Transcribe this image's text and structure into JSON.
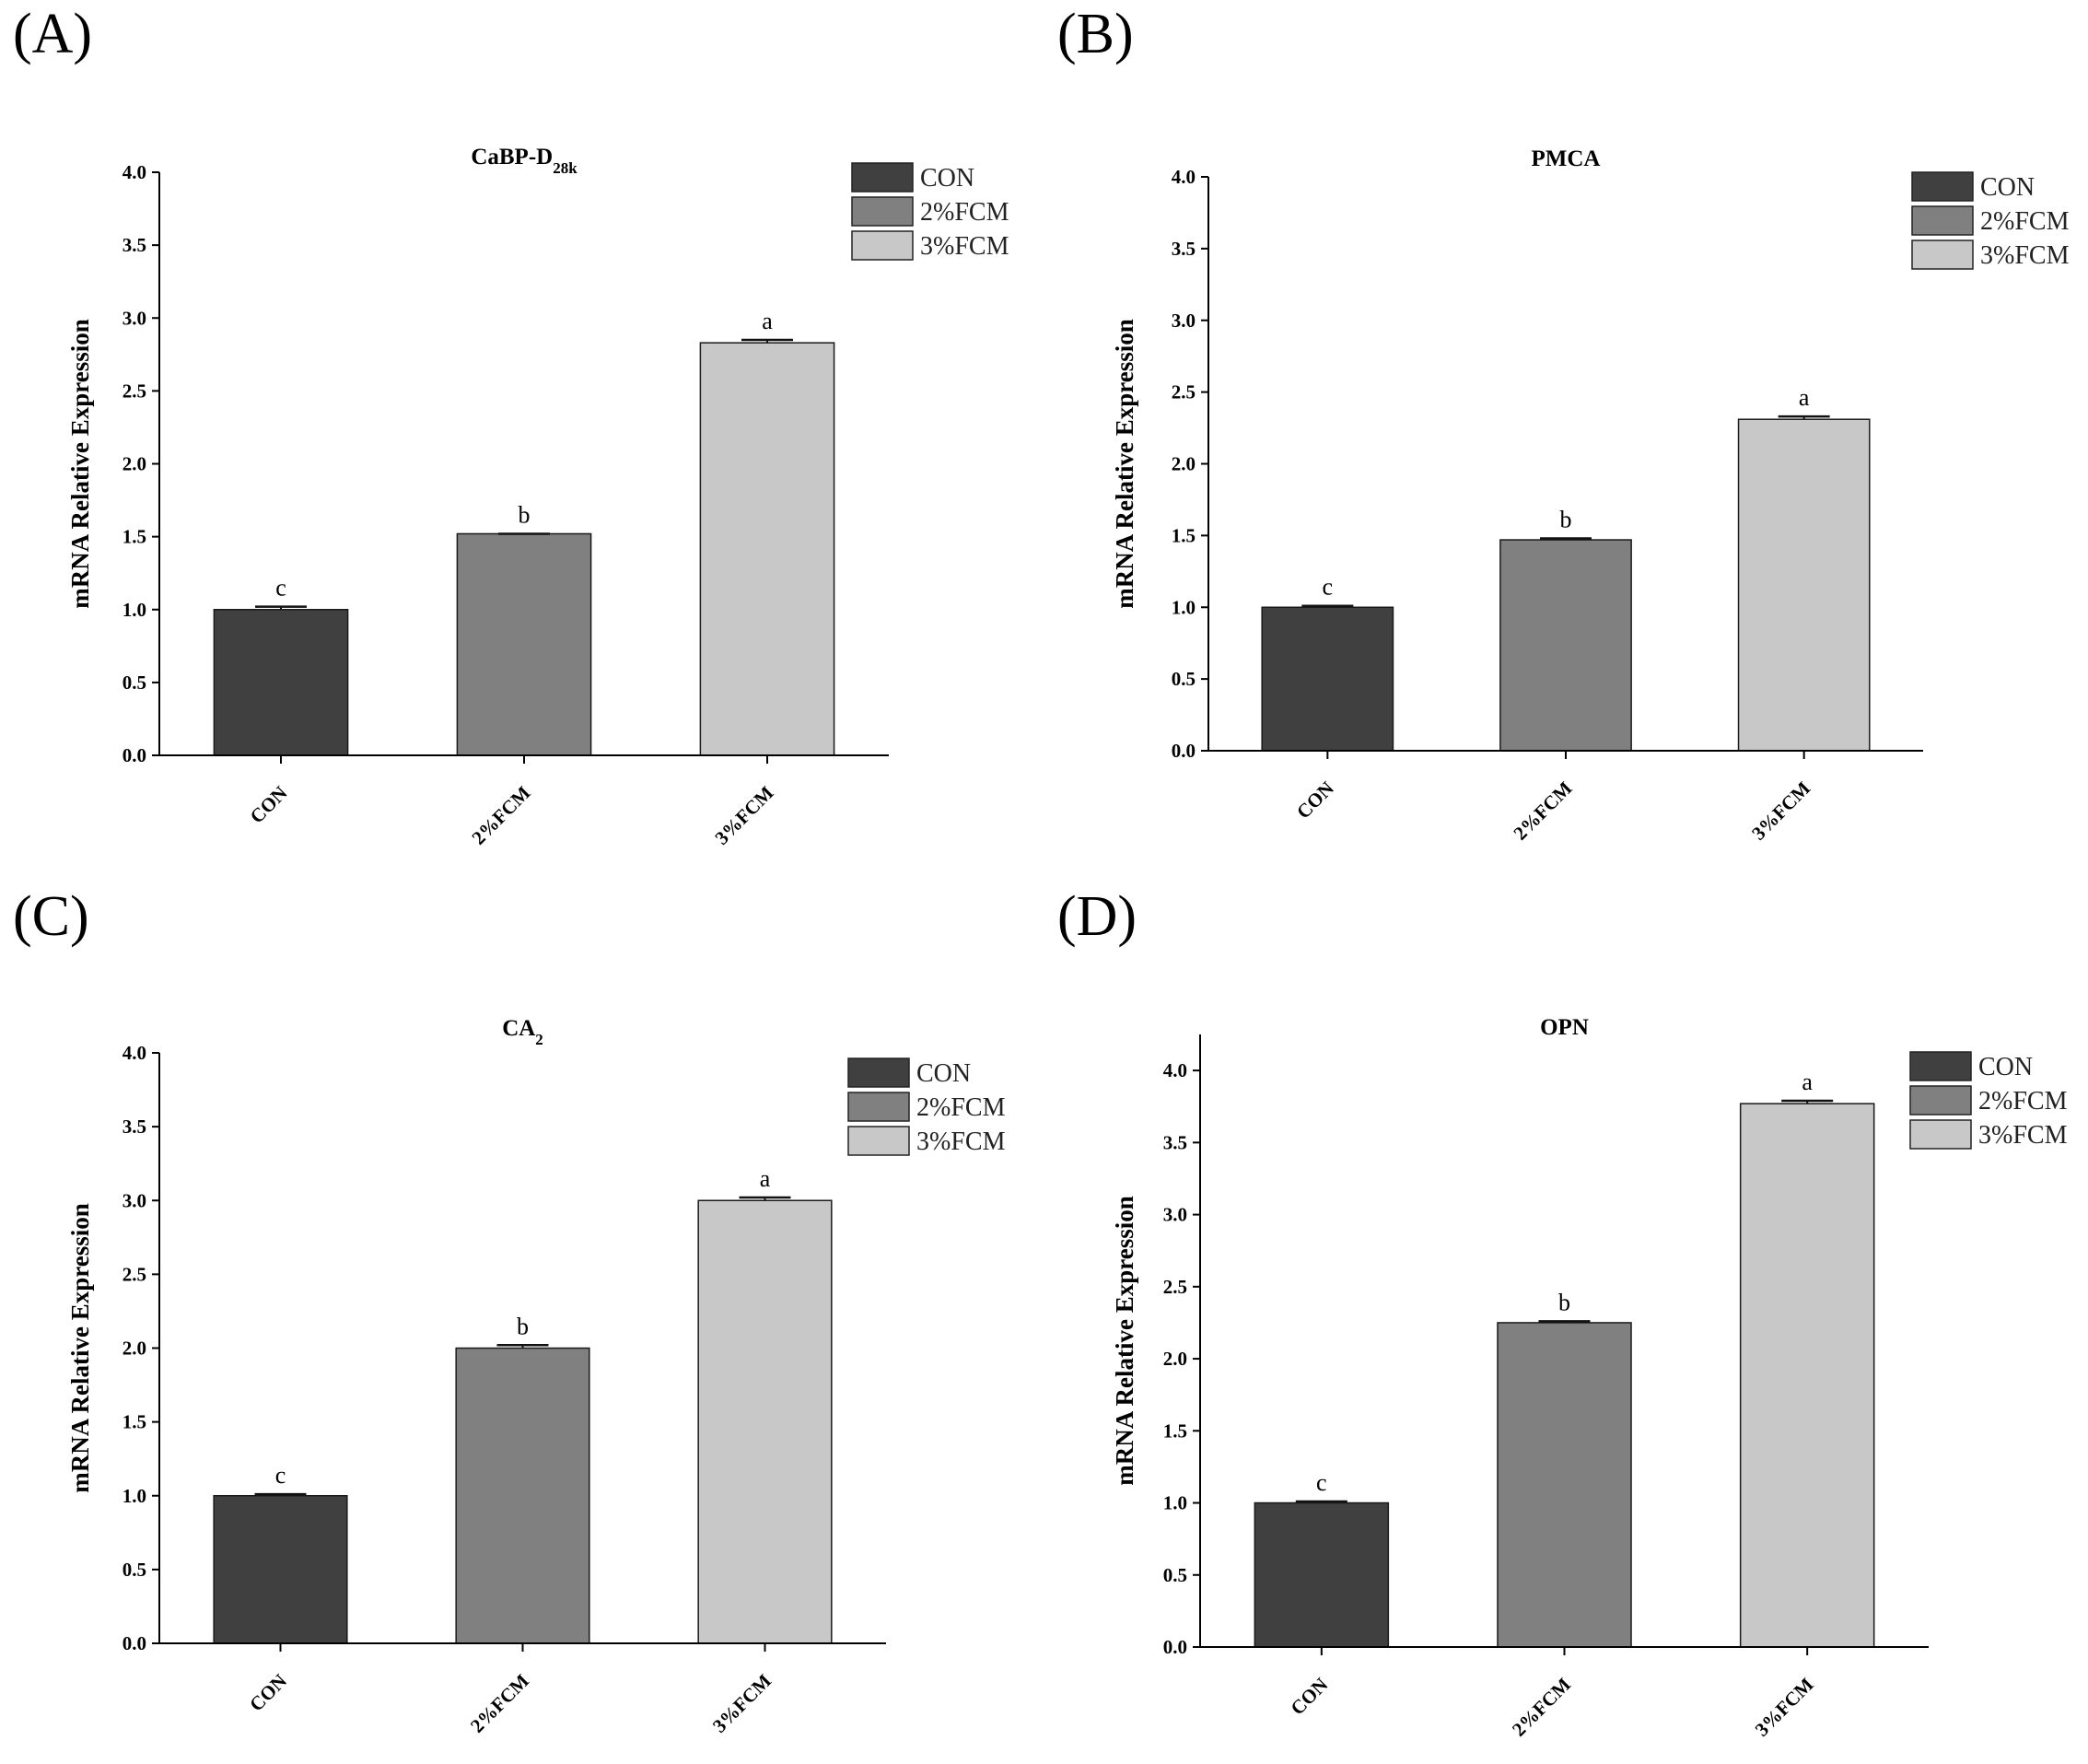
{
  "chart_data": [
    {
      "type": "bar",
      "panel_label": "(A)",
      "title": "CaBP-D",
      "title_sub": "28k",
      "categories": [
        "CON",
        "2%FCM",
        "3%FCM"
      ],
      "values": [
        1.0,
        1.52,
        2.83
      ],
      "errors": [
        0.02,
        0.0,
        0.02
      ],
      "significance": [
        "c",
        "b",
        "a"
      ],
      "ylabel": "mRNA Relative Expression",
      "xlabel": "",
      "ylim": [
        0,
        4.0
      ],
      "yticks": [
        "0.0",
        "0.5",
        "1.0",
        "1.5",
        "2.0",
        "2.5",
        "3.0",
        "3.5",
        "4.0"
      ],
      "legend": [
        "CON",
        "2%FCM",
        "3%FCM"
      ],
      "colors": [
        "#404040",
        "#808080",
        "#c8c8c8"
      ]
    },
    {
      "type": "bar",
      "panel_label": "(B)",
      "title": "PMCA",
      "title_sub": "",
      "categories": [
        "CON",
        "2%FCM",
        "3%FCM"
      ],
      "values": [
        1.0,
        1.47,
        2.31
      ],
      "errors": [
        0.01,
        0.01,
        0.02
      ],
      "significance": [
        "c",
        "b",
        "a"
      ],
      "ylabel": "mRNA Relative Expression",
      "xlabel": "",
      "ylim": [
        0,
        4.0
      ],
      "yticks": [
        "0.0",
        "0.5",
        "1.0",
        "1.5",
        "2.0",
        "2.5",
        "3.0",
        "3.5",
        "4.0"
      ],
      "legend": [
        "CON",
        "2%FCM",
        "3%FCM"
      ],
      "colors": [
        "#404040",
        "#808080",
        "#c8c8c8"
      ]
    },
    {
      "type": "bar",
      "panel_label": "(C)",
      "title": "CA",
      "title_sub": "2",
      "categories": [
        "CON",
        "2%FCM",
        "3%FCM"
      ],
      "values": [
        1.0,
        2.0,
        3.0
      ],
      "errors": [
        0.01,
        0.02,
        0.02
      ],
      "significance": [
        "c",
        "b",
        "a"
      ],
      "ylabel": "mRNA Relative Expression",
      "xlabel": "",
      "ylim": [
        0,
        4.0
      ],
      "yticks": [
        "0.0",
        "0.5",
        "1.0",
        "1.5",
        "2.0",
        "2.5",
        "3.0",
        "3.5",
        "4.0"
      ],
      "legend": [
        "CON",
        "2%FCM",
        "3%FCM"
      ],
      "colors": [
        "#404040",
        "#808080",
        "#c8c8c8"
      ]
    },
    {
      "type": "bar",
      "panel_label": "(D)",
      "title": "OPN",
      "title_sub": "",
      "categories": [
        "CON",
        "2%FCM",
        "3%FCM"
      ],
      "values": [
        1.0,
        2.25,
        3.77
      ],
      "errors": [
        0.01,
        0.01,
        0.02
      ],
      "significance": [
        "c",
        "b",
        "a"
      ],
      "ylabel": "mRNA Relative Expression",
      "xlabel": "",
      "ylim": [
        0,
        4.25
      ],
      "yticks": [
        "0.0",
        "0.5",
        "1.0",
        "1.5",
        "2.0",
        "2.5",
        "3.0",
        "3.5",
        "4.0"
      ],
      "legend": [
        "CON",
        "2%FCM",
        "3%FCM"
      ],
      "colors": [
        "#404040",
        "#808080",
        "#c8c8c8"
      ]
    }
  ]
}
